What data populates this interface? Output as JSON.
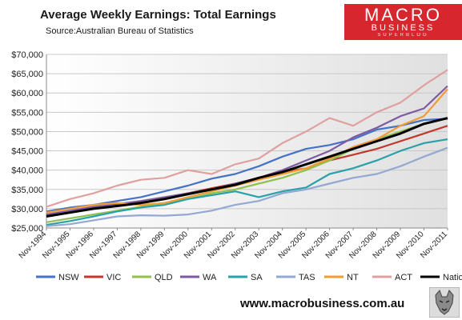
{
  "header": {
    "title": "Average Weekly Earnings: Total Earnings",
    "subtitle": "Source:Australian Bureau of Statistics",
    "logo_line1": "MACRO",
    "logo_line2": "BUSINESS",
    "logo_line3": "SUPERBLOG"
  },
  "footer": {
    "url": "www.macrobusiness.com.au"
  },
  "chart_data": {
    "type": "line",
    "title": "Average Weekly Earnings: Total Earnings",
    "subtitle": "Source:Australian Bureau of Statistics",
    "xlabel": "",
    "ylabel": "",
    "ylim": [
      25000,
      70000
    ],
    "y_ticks": [
      "$25,000",
      "$30,000",
      "$35,000",
      "$40,000",
      "$45,000",
      "$50,000",
      "$55,000",
      "$60,000",
      "$65,000",
      "$70,000"
    ],
    "x": [
      "Nov-1994",
      "Nov-1995",
      "Nov-1996",
      "Nov-1997",
      "Nov-1998",
      "Nov-1999",
      "Nov-2000",
      "Nov-2001",
      "Nov-2002",
      "Nov-2003",
      "Nov-2004",
      "Nov-2005",
      "Nov-2006",
      "Nov-2007",
      "Nov-2008",
      "Nov-2009",
      "Nov-2010",
      "Nov-2011"
    ],
    "grid": "horizontal",
    "legend_position": "bottom",
    "series": [
      {
        "name": "NSW",
        "color": "#4472c4",
        "values": [
          29300,
          30300,
          31000,
          32000,
          33000,
          34500,
          36000,
          37800,
          39000,
          41000,
          43500,
          45500,
          46500,
          48000,
          50500,
          51500,
          53000,
          53300
        ]
      },
      {
        "name": "VIC",
        "color": "#c0392b",
        "values": [
          28300,
          29300,
          30000,
          31000,
          31800,
          32800,
          34000,
          35300,
          36500,
          38000,
          39500,
          40500,
          42500,
          44000,
          45500,
          47500,
          49500,
          51500
        ]
      },
      {
        "name": "QLD",
        "color": "#92c050",
        "values": [
          26500,
          27500,
          28500,
          29500,
          30500,
          31500,
          32500,
          34000,
          35000,
          36500,
          38000,
          40000,
          42500,
          45500,
          48000,
          50000,
          52000,
          53500
        ]
      },
      {
        "name": "WA",
        "color": "#7f5aa2",
        "values": [
          28500,
          29500,
          30500,
          31200,
          32000,
          33000,
          34000,
          35000,
          36500,
          38000,
          40000,
          42500,
          45000,
          48500,
          51000,
          54000,
          56000,
          61800
        ]
      },
      {
        "name": "SA",
        "color": "#2aa0a8",
        "values": [
          25800,
          26800,
          28000,
          29300,
          30300,
          31000,
          32500,
          33500,
          34500,
          33000,
          34500,
          35500,
          39000,
          40500,
          42500,
          45000,
          47000,
          48000
        ]
      },
      {
        "name": "TAS",
        "color": "#93a9d2",
        "values": [
          25500,
          26000,
          27000,
          28000,
          28300,
          28200,
          28500,
          29500,
          31000,
          32000,
          34000,
          35000,
          36500,
          38000,
          39000,
          41000,
          43500,
          45800
        ]
      },
      {
        "name": "NT",
        "color": "#f39c33",
        "values": [
          29000,
          30000,
          31000,
          31500,
          31000,
          31500,
          33000,
          34500,
          36000,
          37500,
          39000,
          40500,
          43000,
          46000,
          48000,
          51500,
          54000,
          61000
        ]
      },
      {
        "name": "ACT",
        "color": "#e0a0a0",
        "values": [
          30500,
          32500,
          34000,
          36000,
          37500,
          38000,
          40000,
          39000,
          41500,
          43000,
          47000,
          50000,
          53500,
          51500,
          55000,
          57500,
          62000,
          66000
        ]
      },
      {
        "name": "National",
        "color": "#000000",
        "values": [
          28000,
          29000,
          30000,
          30700,
          31500,
          32500,
          33800,
          35000,
          36200,
          38000,
          39500,
          41500,
          43500,
          45500,
          47500,
          49500,
          52000,
          53500
        ]
      }
    ]
  }
}
